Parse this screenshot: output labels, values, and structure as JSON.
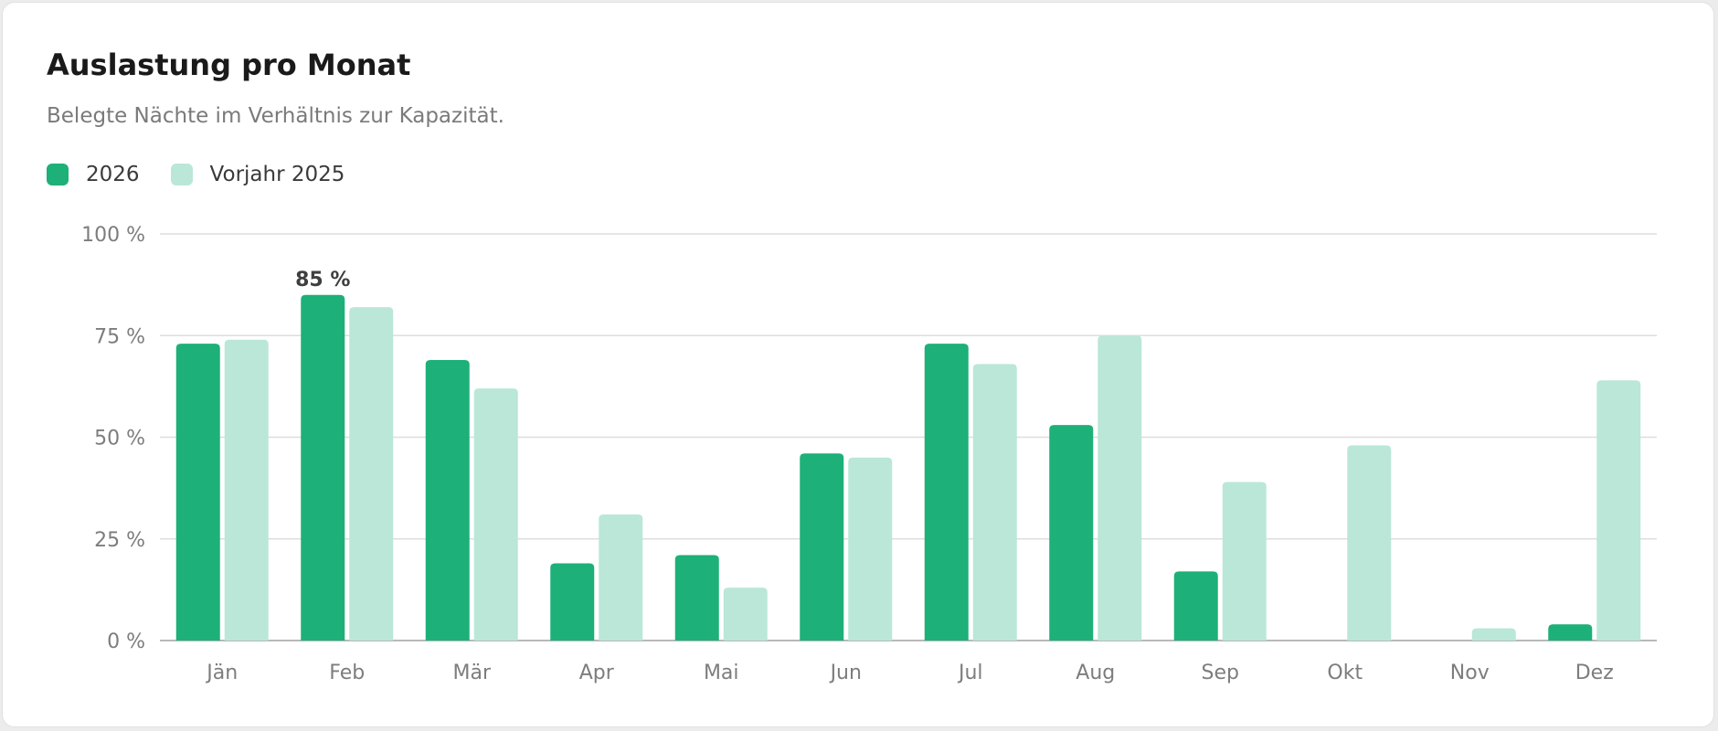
{
  "colors": {
    "current": "#1db079",
    "previous": "#bae7d8",
    "grid": "#dedede",
    "baseline": "#b8b8b8",
    "tick_text": "#7d7d7d",
    "label_text": "#3f3f3f"
  },
  "chart_data": {
    "type": "bar",
    "title": "Auslastung pro Monat",
    "subtitle": "Belegte Nächte im Verhältnis zur Kapazität.",
    "categories": [
      "Jän",
      "Feb",
      "Mär",
      "Apr",
      "Mai",
      "Jun",
      "Jul",
      "Aug",
      "Sep",
      "Okt",
      "Nov",
      "Dez"
    ],
    "series": [
      {
        "name": "2026",
        "values": [
          73,
          85,
          69,
          19,
          21,
          46,
          73,
          53,
          17,
          0,
          0,
          4
        ]
      },
      {
        "name": "Vorjahr 2025",
        "values": [
          74,
          82,
          62,
          31,
          13,
          45,
          68,
          75,
          39,
          48,
          3,
          64
        ]
      }
    ],
    "ylim": [
      0,
      100
    ],
    "yticks": [
      0,
      25,
      50,
      75,
      100
    ],
    "ytick_labels": [
      "0 %",
      "25 %",
      "50 %",
      "75 %",
      "100 %"
    ],
    "annotations": [
      {
        "series": 0,
        "category": "Feb",
        "text": "85 %"
      }
    ],
    "grid": true,
    "legend": "top-left"
  }
}
